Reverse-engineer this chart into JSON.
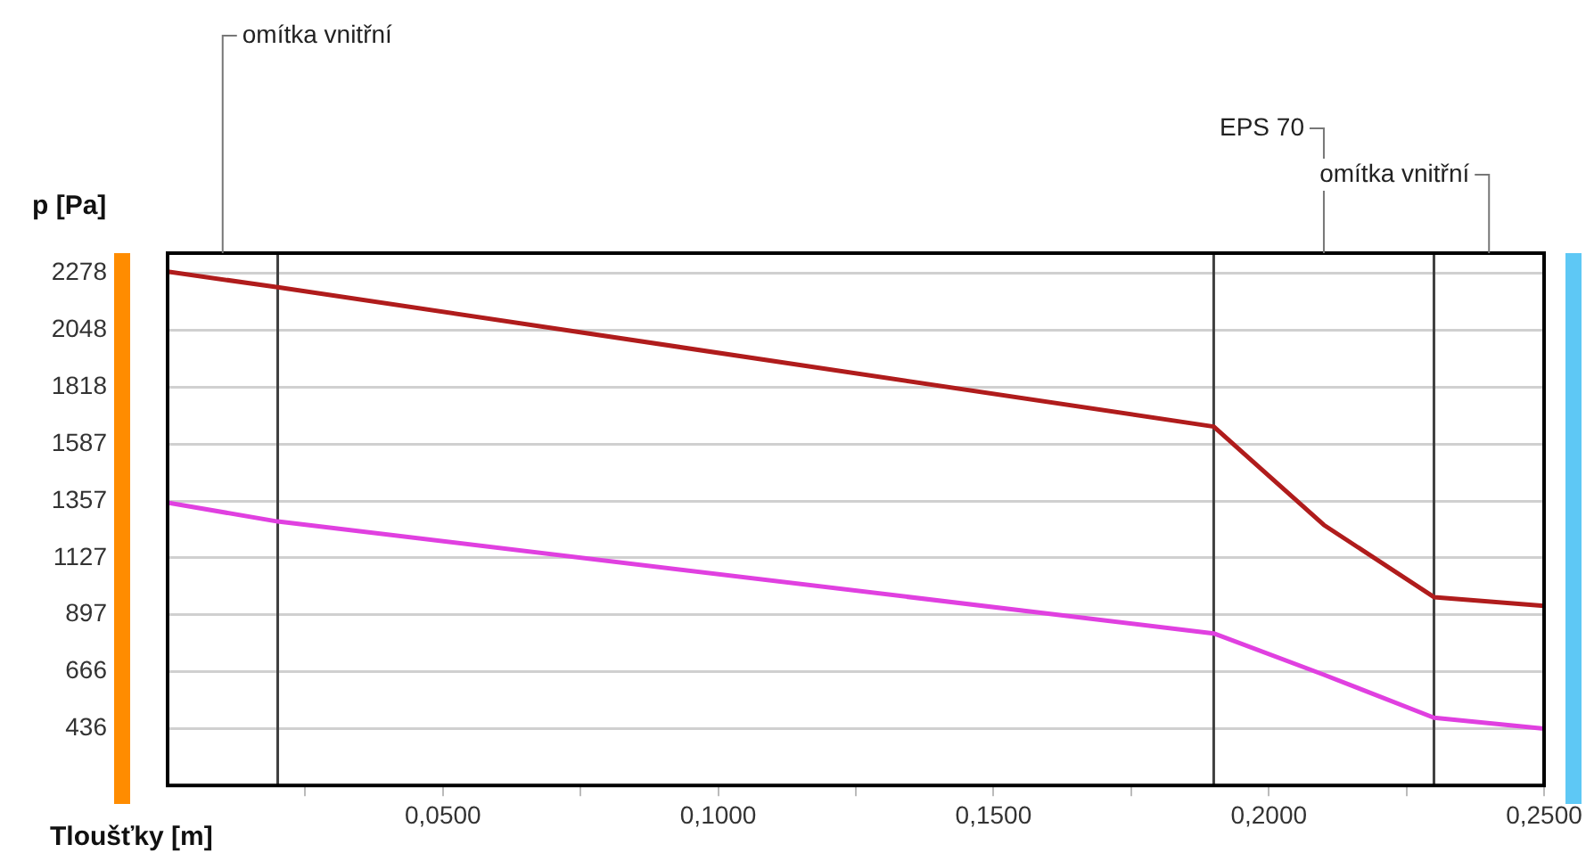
{
  "chart_data": {
    "type": "line",
    "xlabel": "Tloušťky [m]",
    "ylabel": "p [Pa]",
    "series": [
      {
        "color": "#b01c1c",
        "x": [
          0,
          0.02,
          0.19,
          0.21,
          0.23,
          0.25
        ],
        "values": [
          2285,
          2222,
          1658,
          1260,
          968,
          933
        ]
      },
      {
        "color": "#e040e0",
        "x": [
          0,
          0.02,
          0.19,
          0.21,
          0.23,
          0.25
        ],
        "values": [
          1350,
          1274,
          821,
          654,
          480,
          436
        ]
      }
    ],
    "xlim": [
      0,
      0.25
    ],
    "xticks": [
      {
        "value": 0.025,
        "label": null
      },
      {
        "value": 0.05,
        "label": "0,0500"
      },
      {
        "value": 0.075,
        "label": null
      },
      {
        "value": 0.1,
        "label": "0,1000"
      },
      {
        "value": 0.125,
        "label": null
      },
      {
        "value": 0.15,
        "label": "0,1500"
      },
      {
        "value": 0.175,
        "label": null
      },
      {
        "value": 0.2,
        "label": "0,2000"
      },
      {
        "value": 0.225,
        "label": null
      },
      {
        "value": 0.25,
        "label": "0,2500"
      }
    ],
    "ylim": [
      206,
      2360
    ],
    "yticks": [
      436,
      666,
      897,
      1127,
      1357,
      1587,
      1818,
      2048,
      2278
    ],
    "grid": "y",
    "legend": false,
    "marker": "none",
    "line_style": "solid",
    "ref_lines": [
      {
        "axis": "x",
        "value": 0.02,
        "color": "#404040"
      },
      {
        "axis": "x",
        "value": 0.19,
        "color": "#404040"
      },
      {
        "axis": "x",
        "value": 0.23,
        "color": "#404040"
      }
    ],
    "annotations": [
      "omítka vnitřní",
      "EPS 70",
      "omítka vnitřní"
    ]
  }
}
